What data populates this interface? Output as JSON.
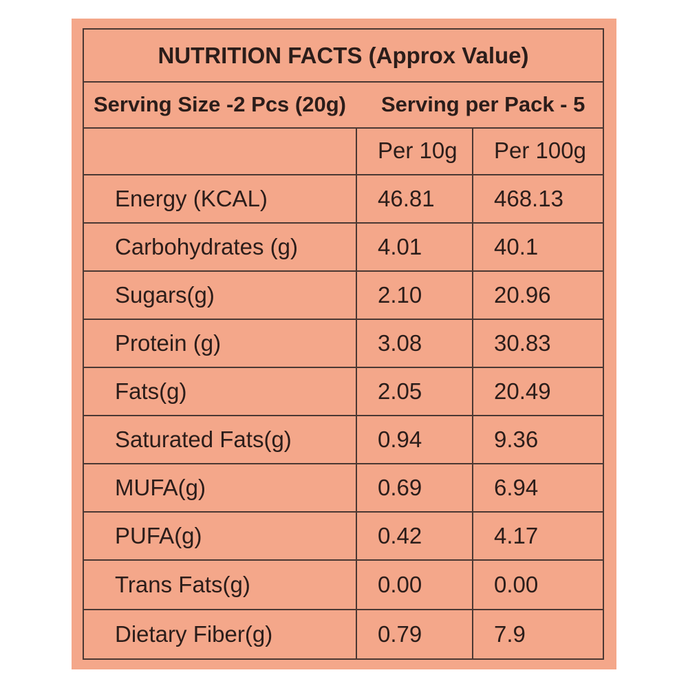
{
  "title": "NUTRITION FACTS (Approx Value)",
  "serving_size": "Serving Size -2 Pcs (20g)",
  "serving_per_pack": "Serving per Pack - 5",
  "columns": {
    "per10": "Per 10g",
    "per100": "Per 100g"
  },
  "rows": [
    {
      "label": "Energy (KCAL)",
      "per10": "46.81",
      "per100": "468.13"
    },
    {
      "label": "Carbohydrates (g)",
      "per10": "4.01",
      "per100": "40.1"
    },
    {
      "label": "Sugars(g)",
      "per10": "2.10",
      "per100": "20.96"
    },
    {
      "label": "Protein (g)",
      "per10": "3.08",
      "per100": "30.83"
    },
    {
      "label": "Fats(g)",
      "per10": "2.05",
      "per100": "20.49"
    },
    {
      "label": "Saturated Fats(g)",
      "per10": "0.94",
      "per100": "9.36"
    },
    {
      "label": "MUFA(g)",
      "per10": "0.69",
      "per100": "6.94"
    },
    {
      "label": "PUFA(g)",
      "per10": "0.42",
      "per100": "4.17"
    },
    {
      "label": "Trans Fats(g)",
      "per10": "0.00",
      "per100": "0.00"
    },
    {
      "label": "Dietary Fiber(g)",
      "per10": "0.79",
      "per100": "7.9"
    }
  ],
  "colors": {
    "background": "#f4a78a",
    "border": "#4a3833",
    "text": "#2b1d1a"
  }
}
